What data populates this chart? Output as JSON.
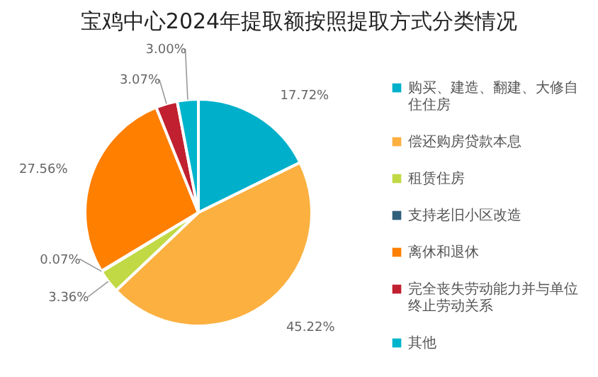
{
  "chart_data": {
    "type": "pie",
    "title": "宝鸡中心2024年提取额按照提取方式分类情况",
    "categories": [
      "购买、建造、翻建、大修自住住房",
      "偿还购房贷款本息",
      "租赁住房",
      "支持老旧小区改造",
      "离休和退休",
      "完全丧失劳动能力并与单位终止劳动关系",
      "其他"
    ],
    "values": [
      17.72,
      45.22,
      3.36,
      0.07,
      27.56,
      3.07,
      3.0
    ],
    "value_labels": [
      "17.72%",
      "45.22%",
      "3.36%",
      "0.07%",
      "27.56%",
      "3.07%",
      "3.00%"
    ],
    "colors": [
      "#00b0ca",
      "#fbb040",
      "#c0d945",
      "#2f5f7a",
      "#ff7f00",
      "#c0202f",
      "#00b4cc"
    ],
    "legend": "right"
  }
}
